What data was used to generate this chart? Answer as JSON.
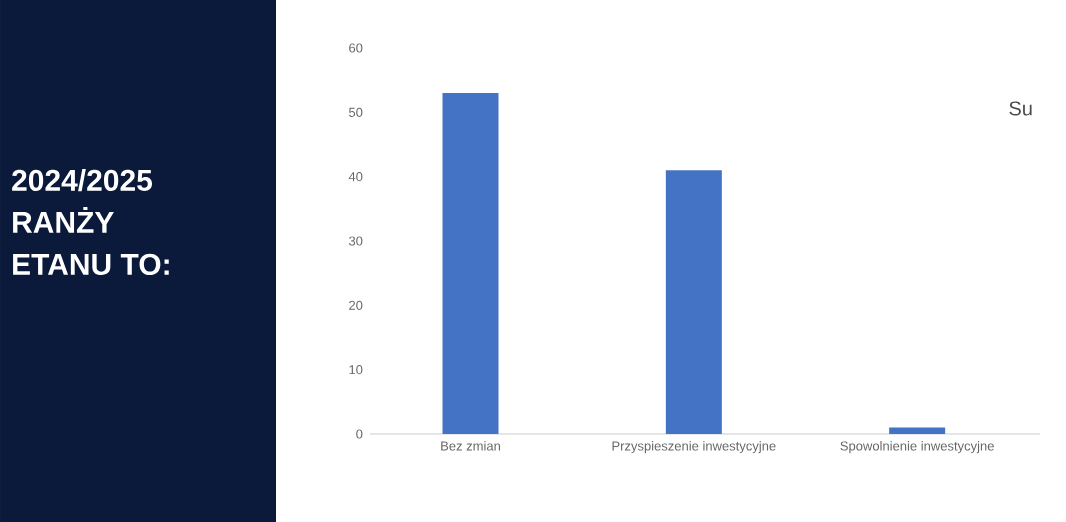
{
  "chart_data": {
    "type": "bar",
    "annotations": [
      "2024/2025",
      "RANŻY",
      "ETANU TO:",
      "Su"
    ],
    "categories": [
      "Bez zmian",
      "Przyspieszenie inwestycyjne",
      "Spowolnienie inwestycyjne"
    ],
    "values": [
      53,
      41,
      1
    ],
    "color": "#4472c4",
    "ylim": [
      0,
      60
    ],
    "yticks": [
      0,
      10,
      20,
      30,
      40,
      50,
      60
    ]
  }
}
